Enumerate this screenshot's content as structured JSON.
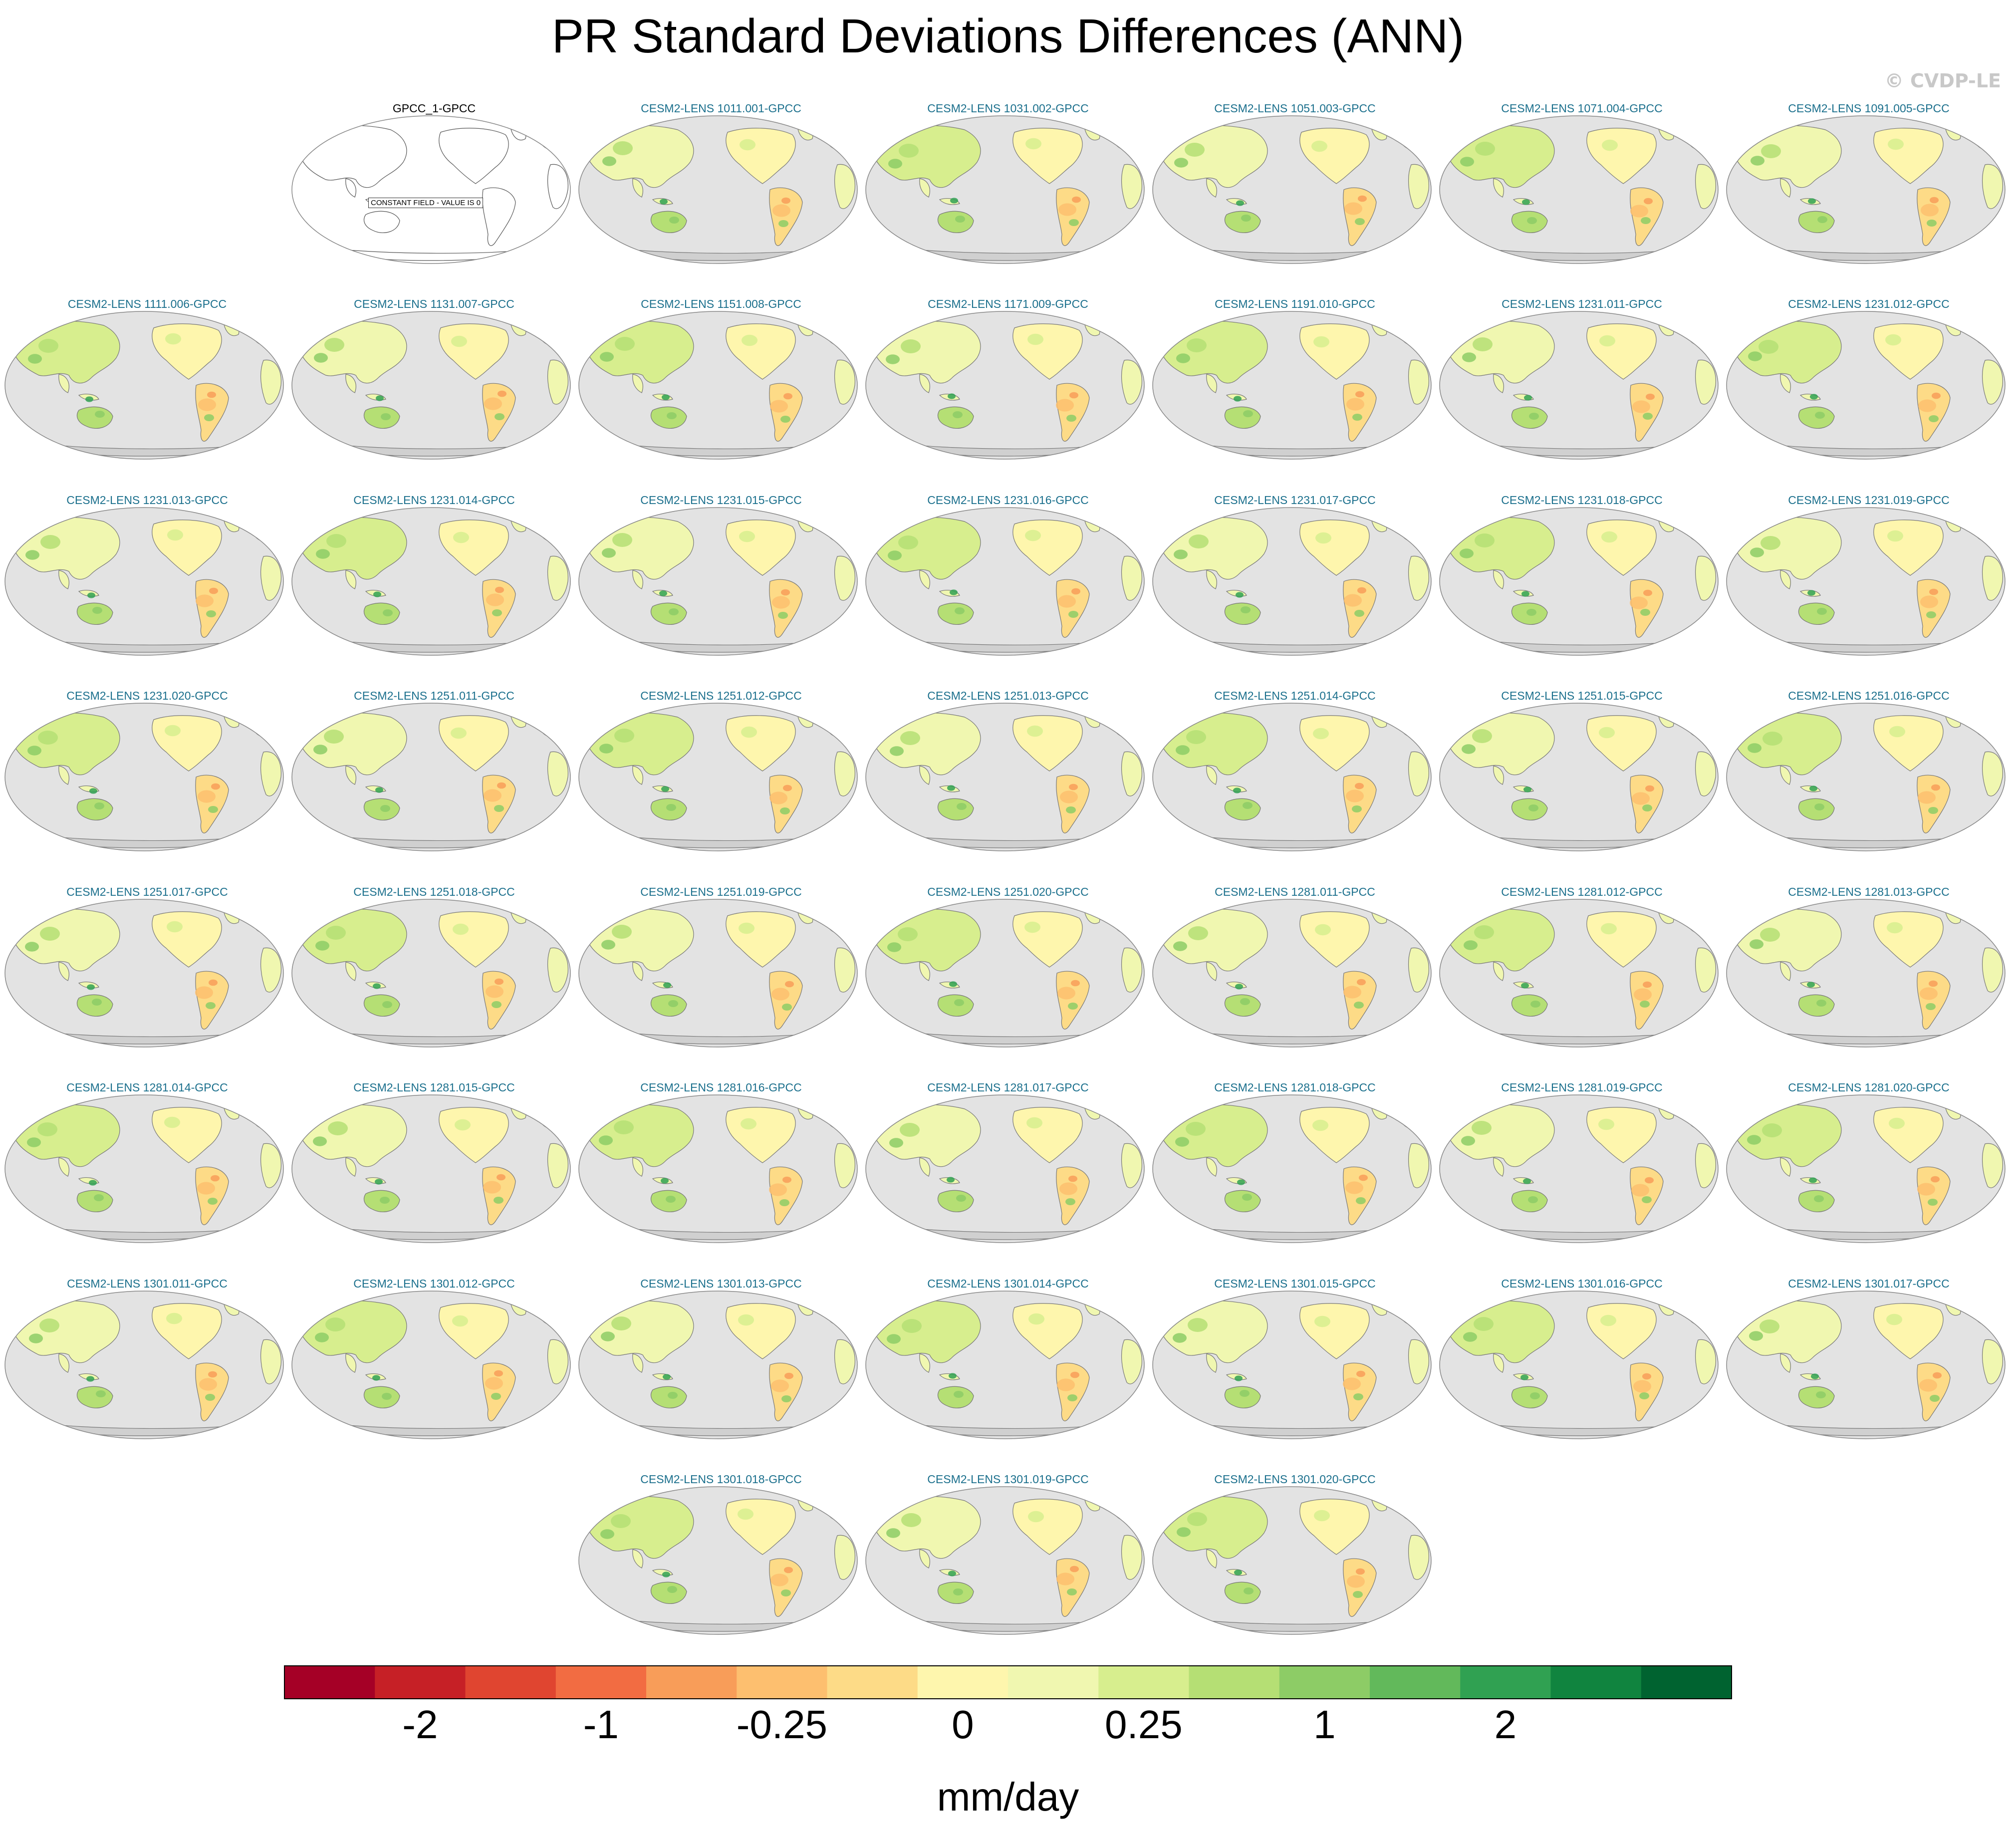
{
  "title": "PR Standard Deviations Differences (ANN)",
  "copyright": "© CVDP-LE",
  "chart_data": {
    "type": "map-panels",
    "title": "PR Standard Deviations Differences (ANN)",
    "panels": [
      {
        "label": "GPCC_1-GPCC",
        "note": "CONSTANT FIELD - VALUE IS 0",
        "constant": true
      },
      {
        "label": "CESM2-LENS 1011.001-GPCC"
      },
      {
        "label": "CESM2-LENS 1031.002-GPCC"
      },
      {
        "label": "CESM2-LENS 1051.003-GPCC"
      },
      {
        "label": "CESM2-LENS 1071.004-GPCC"
      },
      {
        "label": "CESM2-LENS 1091.005-GPCC"
      },
      {
        "label": "CESM2-LENS 1111.006-GPCC"
      },
      {
        "label": "CESM2-LENS 1131.007-GPCC"
      },
      {
        "label": "CESM2-LENS 1151.008-GPCC"
      },
      {
        "label": "CESM2-LENS 1171.009-GPCC"
      },
      {
        "label": "CESM2-LENS 1191.010-GPCC"
      },
      {
        "label": "CESM2-LENS 1231.011-GPCC"
      },
      {
        "label": "CESM2-LENS 1231.012-GPCC"
      },
      {
        "label": "CESM2-LENS 1231.013-GPCC"
      },
      {
        "label": "CESM2-LENS 1231.014-GPCC"
      },
      {
        "label": "CESM2-LENS 1231.015-GPCC"
      },
      {
        "label": "CESM2-LENS 1231.016-GPCC"
      },
      {
        "label": "CESM2-LENS 1231.017-GPCC"
      },
      {
        "label": "CESM2-LENS 1231.018-GPCC"
      },
      {
        "label": "CESM2-LENS 1231.019-GPCC"
      },
      {
        "label": "CESM2-LENS 1231.020-GPCC"
      },
      {
        "label": "CESM2-LENS 1251.011-GPCC"
      },
      {
        "label": "CESM2-LENS 1251.012-GPCC"
      },
      {
        "label": "CESM2-LENS 1251.013-GPCC"
      },
      {
        "label": "CESM2-LENS 1251.014-GPCC"
      },
      {
        "label": "CESM2-LENS 1251.015-GPCC"
      },
      {
        "label": "CESM2-LENS 1251.016-GPCC"
      },
      {
        "label": "CESM2-LENS 1251.017-GPCC"
      },
      {
        "label": "CESM2-LENS 1251.018-GPCC"
      },
      {
        "label": "CESM2-LENS 1251.019-GPCC"
      },
      {
        "label": "CESM2-LENS 1251.020-GPCC"
      },
      {
        "label": "CESM2-LENS 1281.011-GPCC"
      },
      {
        "label": "CESM2-LENS 1281.012-GPCC"
      },
      {
        "label": "CESM2-LENS 1281.013-GPCC"
      },
      {
        "label": "CESM2-LENS 1281.014-GPCC"
      },
      {
        "label": "CESM2-LENS 1281.015-GPCC"
      },
      {
        "label": "CESM2-LENS 1281.016-GPCC"
      },
      {
        "label": "CESM2-LENS 1281.017-GPCC"
      },
      {
        "label": "CESM2-LENS 1281.018-GPCC"
      },
      {
        "label": "CESM2-LENS 1281.019-GPCC"
      },
      {
        "label": "CESM2-LENS 1281.020-GPCC"
      },
      {
        "label": "CESM2-LENS 1301.011-GPCC"
      },
      {
        "label": "CESM2-LENS 1301.012-GPCC"
      },
      {
        "label": "CESM2-LENS 1301.013-GPCC"
      },
      {
        "label": "CESM2-LENS 1301.014-GPCC"
      },
      {
        "label": "CESM2-LENS 1301.015-GPCC"
      },
      {
        "label": "CESM2-LENS 1301.016-GPCC"
      },
      {
        "label": "CESM2-LENS 1301.017-GPCC"
      },
      {
        "label": "CESM2-LENS 1301.018-GPCC"
      },
      {
        "label": "CESM2-LENS 1301.019-GPCC"
      },
      {
        "label": "CESM2-LENS 1301.020-GPCC"
      }
    ],
    "colorbar": {
      "units": "mm/day",
      "colors": [
        "#a50026",
        "#c62026",
        "#e04530",
        "#f26c42",
        "#f89d59",
        "#fdbf6f",
        "#fddb87",
        "#fef6ad",
        "#f0f7b0",
        "#d7ee8e",
        "#b5df74",
        "#8dcc66",
        "#62b95b",
        "#30a152",
        "#10843f",
        "#006330"
      ],
      "tick_labels": [
        "-2",
        "-1",
        "-0.25",
        "0",
        "0.25",
        "1",
        "2"
      ],
      "tick_boundaries": [
        2,
        4,
        6,
        8,
        10,
        12,
        14
      ]
    }
  }
}
